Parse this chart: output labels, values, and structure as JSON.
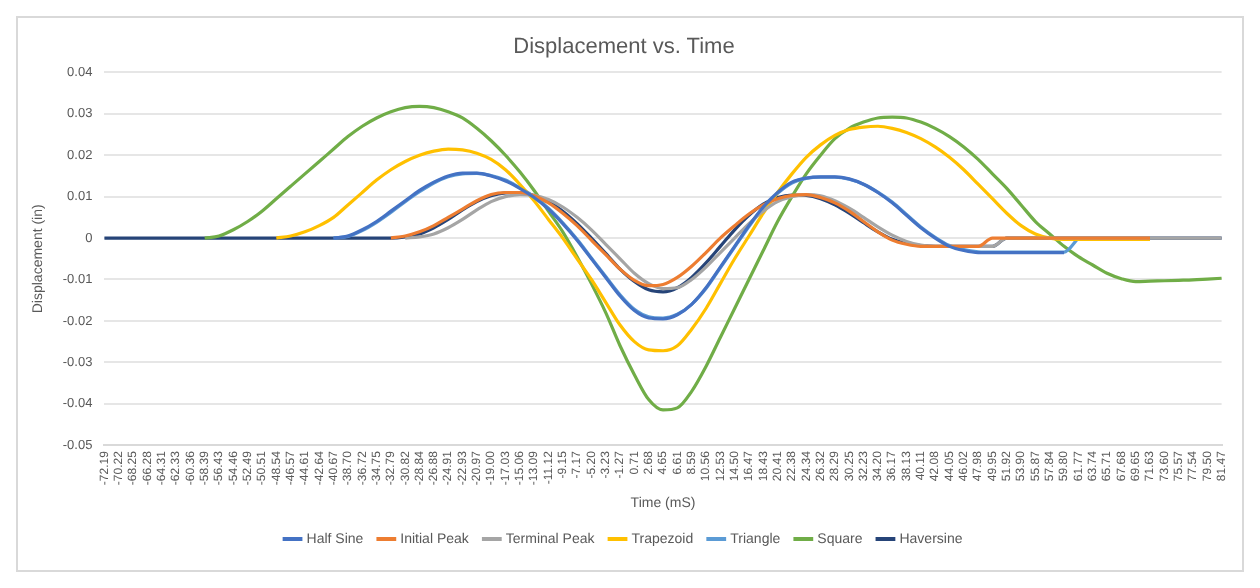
{
  "chart_data": {
    "type": "line",
    "title": "Displacement vs. Time",
    "xlabel": "Time (mS)",
    "ylabel": "Displacement (in)",
    "categories": [
      "-72.19",
      "-70.22",
      "-68.25",
      "-66.28",
      "-64.31",
      "-62.33",
      "-60.36",
      "-58.39",
      "-56.43",
      "-54.46",
      "-52.49",
      "-50.51",
      "-48.54",
      "-46.57",
      "-44.61",
      "-42.64",
      "-40.67",
      "-38.70",
      "-36.72",
      "-34.75",
      "-32.79",
      "-30.82",
      "-28.84",
      "-26.88",
      "-24.91",
      "-22.93",
      "-20.97",
      "-19.00",
      "-17.03",
      "-15.06",
      "-13.09",
      "-11.12",
      "-9.15",
      "-7.17",
      "-5.20",
      "-3.23",
      "-1.27",
      "0.71",
      "2.68",
      "4.65",
      "6.61",
      "8.59",
      "10.56",
      "12.53",
      "14.50",
      "16.47",
      "18.43",
      "20.41",
      "22.38",
      "24.34",
      "26.32",
      "28.29",
      "30.25",
      "32.23",
      "34.20",
      "36.17",
      "38.13",
      "40.11",
      "42.08",
      "44.05",
      "46.02",
      "47.98",
      "49.95",
      "51.92",
      "53.90",
      "55.87",
      "57.84",
      "59.80",
      "61.77",
      "63.74",
      "65.71",
      "67.68",
      "69.65",
      "71.63",
      "73.60",
      "75.57",
      "77.54",
      "79.50",
      "81.47"
    ],
    "series": [
      {
        "name": "Half Sine",
        "color": "#4472c4",
        "values": [
          null,
          null,
          null,
          null,
          null,
          null,
          null,
          null,
          null,
          null,
          null,
          null,
          null,
          null,
          null,
          null,
          0,
          0.0005,
          0.002,
          0.004,
          0.0065,
          0.009,
          0.0115,
          0.0135,
          0.015,
          0.0157,
          0.0157,
          0.015,
          0.0138,
          0.012,
          0.0098,
          0.007,
          0.0035,
          -0.0005,
          -0.005,
          -0.0095,
          -0.014,
          -0.0175,
          -0.0193,
          -0.0195,
          -0.0185,
          -0.016,
          -0.012,
          -0.007,
          -0.002,
          0.003,
          0.0075,
          0.011,
          0.0135,
          0.0145,
          0.0148,
          0.0148,
          0.0143,
          0.013,
          0.011,
          0.0085,
          0.0055,
          0.0025,
          0,
          -0.002,
          -0.003,
          -0.0035,
          -0.0035,
          -0.0035,
          -0.0035,
          -0.0035,
          -0.0035,
          -0.0035,
          null,
          null,
          null,
          null,
          null,
          null,
          null,
          null,
          null,
          null,
          null
        ]
      },
      {
        "name": "Initial Peak",
        "color": "#ed7d31",
        "values": [
          null,
          null,
          null,
          null,
          null,
          null,
          null,
          null,
          null,
          null,
          null,
          null,
          null,
          null,
          null,
          null,
          null,
          null,
          null,
          null,
          0,
          0.0005,
          0.0015,
          0.003,
          0.005,
          0.007,
          0.009,
          0.0105,
          0.011,
          0.011,
          0.0102,
          0.0085,
          0.006,
          0.003,
          -0.0005,
          -0.004,
          -0.0075,
          -0.0102,
          -0.0115,
          -0.0112,
          -0.0095,
          -0.0068,
          -0.0035,
          0,
          0.003,
          0.0058,
          0.008,
          0.0095,
          0.0103,
          0.0105,
          0.0098,
          0.0085,
          0.0065,
          0.004,
          0.0015,
          -0.0005,
          -0.0015,
          -0.002,
          -0.002,
          -0.002,
          -0.002,
          -0.002,
          0,
          0,
          0,
          0,
          0,
          0,
          0,
          0,
          0,
          0,
          0,
          0,
          null,
          null,
          null,
          null,
          null
        ]
      },
      {
        "name": "Terminal Peak",
        "color": "#a5a5a5",
        "values": [
          null,
          null,
          null,
          null,
          null,
          null,
          null,
          null,
          null,
          null,
          null,
          null,
          null,
          null,
          null,
          null,
          null,
          null,
          null,
          null,
          null,
          0,
          0.0003,
          0.001,
          0.0025,
          0.0045,
          0.0068,
          0.0088,
          0.01,
          0.0105,
          0.0103,
          0.0093,
          0.0075,
          0.005,
          0.002,
          -0.0015,
          -0.005,
          -0.0085,
          -0.011,
          -0.0122,
          -0.012,
          -0.01,
          -0.007,
          -0.0035,
          0,
          0.0035,
          0.0065,
          0.0088,
          0.01,
          0.0105,
          0.0102,
          0.009,
          0.0072,
          0.005,
          0.0027,
          0.0007,
          -0.0008,
          -0.0017,
          -0.002,
          -0.002,
          -0.002,
          -0.002,
          -0.002,
          0,
          0,
          0,
          0,
          0,
          0,
          0,
          0,
          0,
          0,
          0,
          0,
          0,
          0,
          0,
          0
        ]
      },
      {
        "name": "Trapezoid",
        "color": "#ffc000",
        "values": [
          null,
          null,
          null,
          null,
          null,
          null,
          null,
          null,
          null,
          null,
          null,
          null,
          0,
          0.0005,
          0.0015,
          0.003,
          0.005,
          0.008,
          0.011,
          0.014,
          0.0165,
          0.0185,
          0.02,
          0.021,
          0.0215,
          0.0213,
          0.0205,
          0.019,
          0.0165,
          0.013,
          0.009,
          0.0045,
          0,
          -0.005,
          -0.01,
          -0.0155,
          -0.021,
          -0.025,
          -0.027,
          -0.0272,
          -0.026,
          -0.022,
          -0.017,
          -0.011,
          -0.005,
          0.0005,
          0.006,
          0.011,
          0.0155,
          0.0195,
          0.0225,
          0.0248,
          0.0262,
          0.0268,
          0.027,
          0.0265,
          0.0255,
          0.024,
          0.022,
          0.0195,
          0.0165,
          0.013,
          0.0095,
          0.006,
          0.003,
          0.001,
          0,
          -0.0003,
          -0.0003,
          -0.0003,
          -0.0003,
          -0.0003,
          -0.0003,
          -0.0003,
          null,
          null,
          null,
          null,
          null
        ]
      },
      {
        "name": "Triangle",
        "color": "#5b9bd5",
        "values": [
          null,
          null,
          null,
          null,
          null,
          null,
          null,
          null,
          null,
          null,
          null,
          null,
          null,
          null,
          null,
          null,
          0,
          0.0004,
          0.0018,
          0.0038,
          0.0062,
          0.0088,
          0.0112,
          0.0133,
          0.0148,
          0.0155,
          0.0156,
          0.0151,
          0.014,
          0.0122,
          0.01,
          0.0072,
          0.0037,
          -0.0003,
          -0.0048,
          -0.0093,
          -0.0137,
          -0.0172,
          -0.019,
          -0.0193,
          -0.0184,
          -0.016,
          -0.0122,
          -0.0072,
          -0.0022,
          0.0028,
          0.0073,
          0.0108,
          0.0133,
          0.0144,
          0.0147,
          0.0147,
          0.0142,
          0.013,
          0.0111,
          0.0087,
          0.0057,
          0.0027,
          0.0002,
          -0.0018,
          -0.0028,
          -0.0033,
          -0.0034,
          -0.0034,
          -0.0034,
          -0.0034,
          -0.0034,
          -0.0034,
          0,
          null,
          null,
          null,
          null,
          null,
          null,
          null,
          null,
          null,
          null
        ]
      },
      {
        "name": "Square",
        "color": "#70ad47",
        "values": [
          null,
          null,
          null,
          null,
          null,
          null,
          null,
          0,
          0.0005,
          0.002,
          0.004,
          0.0065,
          0.0095,
          0.0125,
          0.0155,
          0.0185,
          0.0215,
          0.0245,
          0.027,
          0.029,
          0.0305,
          0.0315,
          0.0318,
          0.0315,
          0.0305,
          0.029,
          0.0265,
          0.0235,
          0.02,
          0.016,
          0.0115,
          0.0065,
          0.0015,
          -0.0045,
          -0.011,
          -0.018,
          -0.026,
          -0.033,
          -0.039,
          -0.0415,
          -0.041,
          -0.037,
          -0.031,
          -0.024,
          -0.017,
          -0.01,
          -0.003,
          0.004,
          0.01,
          0.0155,
          0.02,
          0.024,
          0.0265,
          0.028,
          0.029,
          0.0292,
          0.029,
          0.028,
          0.0265,
          0.0245,
          0.022,
          0.019,
          0.0155,
          0.012,
          0.008,
          0.004,
          0.001,
          -0.002,
          -0.0045,
          -0.0065,
          -0.0085,
          -0.0098,
          -0.0105,
          -0.0104,
          -0.0103,
          -0.0102,
          -0.0101,
          -0.0099,
          -0.0097
        ]
      },
      {
        "name": "Haversine",
        "color": "#264478",
        "values": [
          0,
          0,
          0,
          0,
          0,
          0,
          0,
          0,
          0,
          0,
          0,
          0,
          0,
          0,
          0,
          0,
          0,
          0,
          0,
          0,
          0,
          0.0003,
          0.001,
          0.0025,
          0.0045,
          0.0068,
          0.0088,
          0.0102,
          0.0109,
          0.011,
          0.0103,
          0.0088,
          0.0065,
          0.0035,
          0,
          -0.0037,
          -0.0075,
          -0.0105,
          -0.0125,
          -0.013,
          -0.012,
          -0.0095,
          -0.006,
          -0.002,
          0.002,
          0.0055,
          0.0082,
          0.0098,
          0.0104,
          0.0103,
          0.0095,
          0.008,
          0.006,
          0.0037,
          0.0015,
          -0.0003,
          -0.0013,
          -0.0018,
          -0.002,
          -0.002,
          -0.002,
          -0.002,
          -0.002,
          0,
          0,
          0,
          0,
          0,
          0,
          0,
          0,
          0,
          0,
          0,
          0,
          0,
          0,
          0,
          0
        ]
      }
    ],
    "ylim": [
      -0.05,
      0.04
    ],
    "yticks": [
      -0.05,
      -0.04,
      -0.03,
      -0.02,
      -0.01,
      0,
      0.01,
      0.02,
      0.03,
      0.04
    ],
    "grid": "y",
    "legend": "bottom",
    "marker": "none",
    "line_style": "solid"
  }
}
